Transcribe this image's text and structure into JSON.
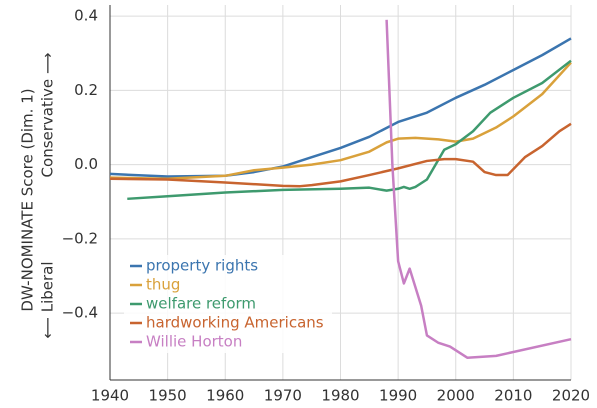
{
  "chart_data": {
    "type": "line",
    "ylabel": "DW-NOMINATE Score (Dim. 1)",
    "ylabel_high": "Conservative ⟶",
    "ylabel_low": "⟵ Liberal",
    "xlim": [
      1940,
      2020
    ],
    "xticks": [
      1940,
      1950,
      1960,
      1970,
      1980,
      1990,
      2000,
      2010,
      2020
    ],
    "ylim": [
      -0.58,
      0.43
    ],
    "yticks": [
      0.4,
      0.2,
      {
        "value": 0.0,
        "label": "0.0"
      },
      {
        "value": -0.2,
        "label": "−0.2"
      },
      {
        "value": -0.4,
        "label": "−0.4"
      }
    ],
    "grid": true,
    "legend": "lower left",
    "series": [
      {
        "name": "property rights",
        "color": "#3b75af",
        "x": [
          1940,
          1950,
          1960,
          1965,
          1970,
          1975,
          1980,
          1985,
          1990,
          1995,
          2000,
          2005,
          2010,
          2015,
          2020
        ],
        "values": [
          -0.025,
          -0.032,
          -0.03,
          -0.02,
          -0.005,
          0.02,
          0.045,
          0.075,
          0.115,
          0.14,
          0.18,
          0.215,
          0.255,
          0.295,
          0.34
        ]
      },
      {
        "name": "thug",
        "color": "#d9a13b",
        "x": [
          1940,
          1950,
          1960,
          1965,
          1970,
          1975,
          1980,
          1985,
          1988,
          1990,
          1993,
          1997,
          2000,
          2003,
          2007,
          2010,
          2015,
          2020
        ],
        "values": [
          -0.035,
          -0.038,
          -0.03,
          -0.015,
          -0.008,
          0.0,
          0.012,
          0.035,
          0.06,
          0.07,
          0.072,
          0.068,
          0.062,
          0.07,
          0.1,
          0.13,
          0.19,
          0.275
        ]
      },
      {
        "name": "welfare reform",
        "color": "#3e9a6e",
        "x": [
          1943,
          1950,
          1960,
          1970,
          1980,
          1985,
          1988,
          1990,
          1991,
          1992,
          1993,
          1995,
          1998,
          2000,
          2003,
          2006,
          2010,
          2015,
          2020
        ],
        "values": [
          -0.092,
          -0.085,
          -0.075,
          -0.068,
          -0.065,
          -0.062,
          -0.07,
          -0.065,
          -0.06,
          -0.065,
          -0.06,
          -0.04,
          0.04,
          0.055,
          0.09,
          0.14,
          0.18,
          0.22,
          0.28
        ]
      },
      {
        "name": "hardworking Americans",
        "color": "#c8642f",
        "x": [
          1940,
          1950,
          1960,
          1970,
          1973,
          1975,
          1980,
          1985,
          1990,
          1995,
          1998,
          2000,
          2003,
          2005,
          2007,
          2009,
          2012,
          2015,
          2018,
          2020
        ],
        "values": [
          -0.038,
          -0.04,
          -0.048,
          -0.057,
          -0.058,
          -0.055,
          -0.045,
          -0.028,
          -0.01,
          0.01,
          0.015,
          0.015,
          0.008,
          -0.02,
          -0.028,
          -0.028,
          0.02,
          0.05,
          0.09,
          0.11
        ]
      },
      {
        "name": "Willie Horton",
        "color": "#c77fc3",
        "x": [
          1988,
          1989,
          1990,
          1991,
          1992,
          1994,
          1995,
          1997,
          1999,
          2002,
          2007,
          2020
        ],
        "values": [
          0.39,
          0.0,
          -0.26,
          -0.32,
          -0.28,
          -0.38,
          -0.46,
          -0.48,
          -0.49,
          -0.52,
          -0.515,
          -0.47
        ]
      }
    ]
  }
}
